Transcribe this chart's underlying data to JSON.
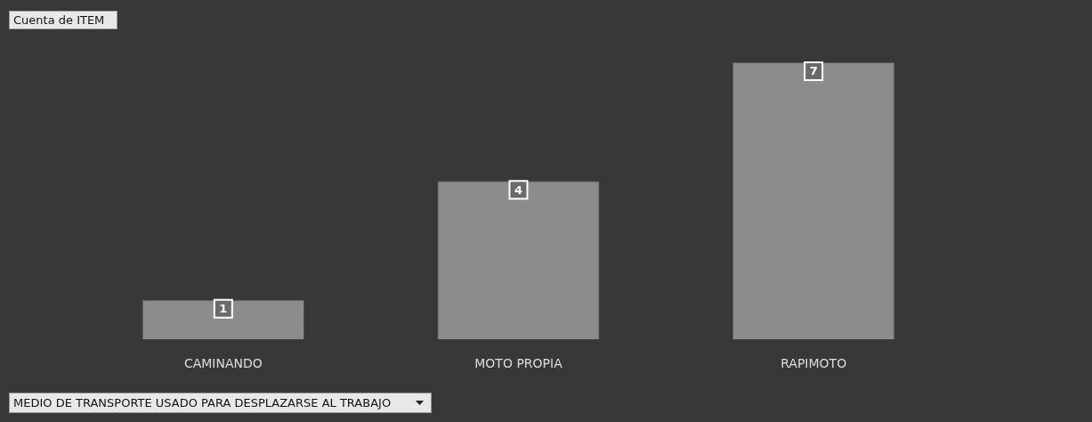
{
  "chart_data": {
    "type": "bar",
    "title": "Cuenta de ITEM",
    "xlabel": "MEDIO DE TRANSPORTE USADO PARA DESPLAZARSE AL TRABAJO",
    "categories": [
      "CAMINANDO",
      "MOTO PROPIA",
      "RAPIMOTO"
    ],
    "values": [
      1,
      4,
      7
    ],
    "color": "#8c8c8c",
    "data_labels": true,
    "grid": false,
    "legend": false
  }
}
